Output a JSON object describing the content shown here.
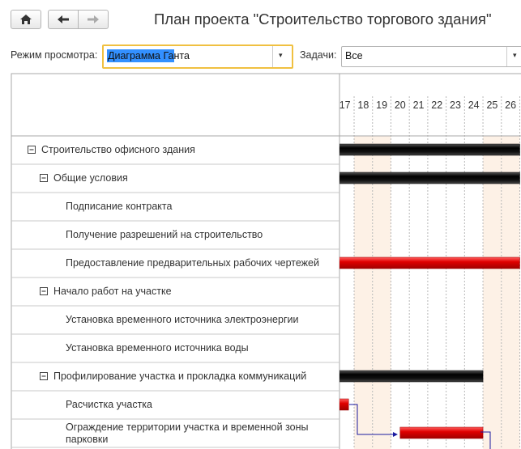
{
  "toolbar": {
    "title": "План проекта \"Строительство торгового здания\""
  },
  "filters": {
    "view_mode_label": "Режим просмотра:",
    "view_mode_value": "Диаграмма Ганта",
    "tasks_label": "Задачи:",
    "tasks_value": "Все"
  },
  "gantt": {
    "days": [
      17,
      18,
      19,
      20,
      21,
      22,
      23,
      24,
      25,
      26
    ],
    "weekends": [
      18,
      19,
      25,
      26
    ],
    "tasks": [
      {
        "name": "Строительство офисного здания",
        "level": 0,
        "bar": [
          17,
          27
        ],
        "color": "black"
      },
      {
        "name": "Общие условия",
        "level": 1,
        "bar": [
          17,
          27
        ],
        "color": "black"
      },
      {
        "name": "Подписание контракта",
        "level": 2
      },
      {
        "name": "Получение разрешений на строительство",
        "level": 2
      },
      {
        "name": "Предоставление предварительных рабочих чертежей",
        "level": 2,
        "bar": [
          17,
          27
        ],
        "color": "red"
      },
      {
        "name": "Начало работ на участке",
        "level": 1
      },
      {
        "name": "Установка временного источника электроэнергии",
        "level": 2
      },
      {
        "name": "Установка временного источника воды",
        "level": 2
      },
      {
        "name": "Профилирование участка и прокладка коммуникаций",
        "level": 1,
        "bar": [
          17,
          25
        ],
        "color": "black"
      },
      {
        "name": "Расчистка участка",
        "level": 2,
        "bar": [
          17,
          17.7
        ],
        "color": "red"
      },
      {
        "name": "Ограждение территории участка и временной зоны парковки",
        "level": 2,
        "bar": [
          20.5,
          25
        ],
        "color": "red"
      }
    ]
  }
}
